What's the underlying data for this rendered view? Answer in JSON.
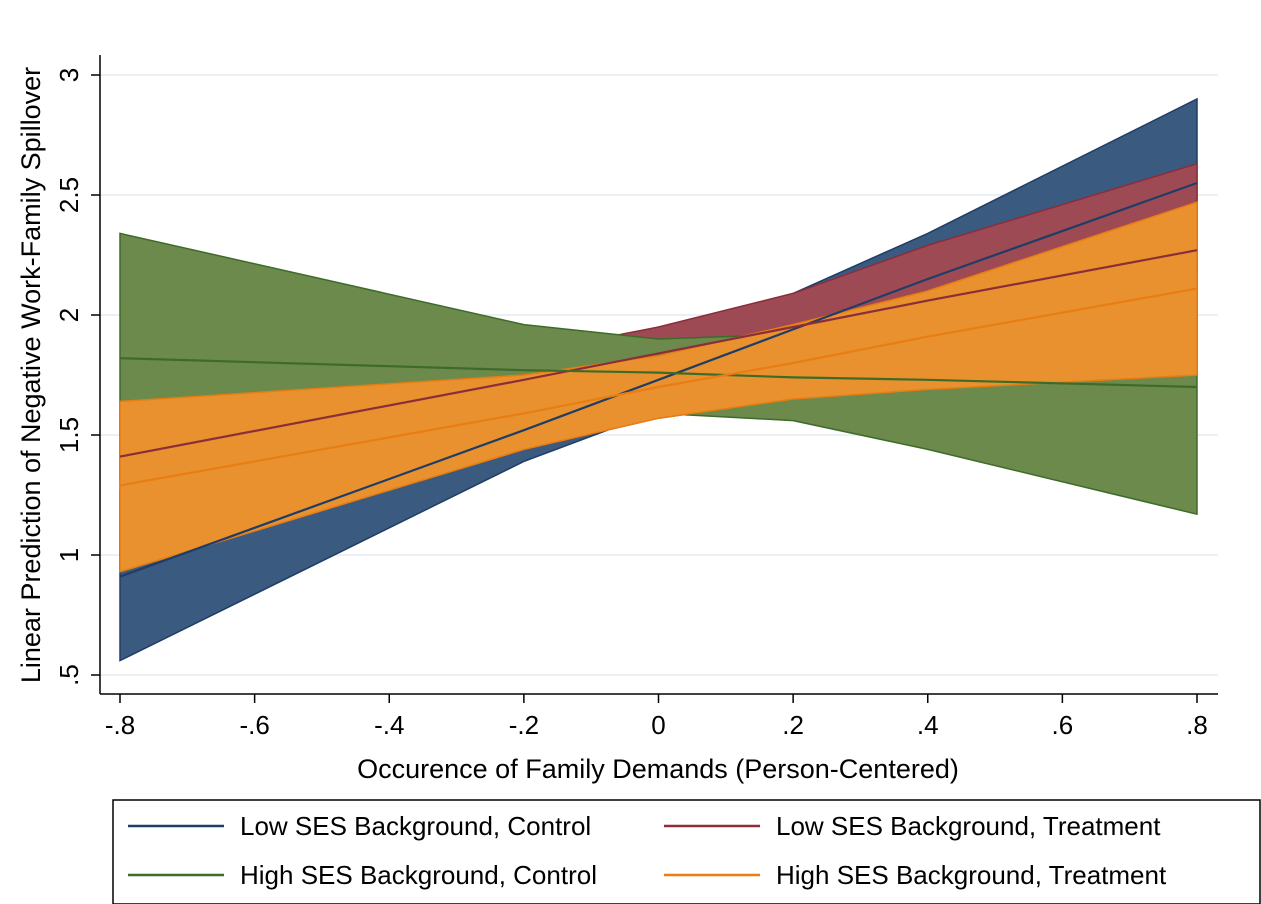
{
  "chart_data": {
    "type": "line",
    "title": "",
    "xlabel": "Occurence of Family Demands (Person-Centered)",
    "ylabel": "Linear Prediction of Negative Work-Family Spillover",
    "xlim": [
      -0.8,
      0.8
    ],
    "ylim": [
      0.5,
      3
    ],
    "xticks": [
      -0.8,
      -0.6,
      -0.4,
      -0.2,
      0,
      0.2,
      0.4,
      0.6,
      0.8
    ],
    "xtick_labels": [
      "-.8",
      "-.6",
      "-.4",
      "-.2",
      "0",
      ".2",
      ".4",
      ".6",
      ".8"
    ],
    "yticks": [
      0.5,
      1,
      1.5,
      2,
      2.5,
      3
    ],
    "ytick_labels": [
      ".5",
      "1",
      "1.5",
      "2",
      "2.5",
      "3"
    ],
    "grid": true,
    "legend_position": "bottom",
    "series": [
      {
        "name": "Low SES Background, Control",
        "color": "#1f3d66",
        "band_color": "#3b5a7f",
        "x": [
          -0.8,
          -0.2,
          0,
          0.2,
          0.4,
          0.8
        ],
        "y": [
          0.91,
          1.52,
          1.73,
          1.94,
          2.15,
          2.55
        ],
        "ci_low": [
          0.56,
          1.39,
          1.6,
          1.78,
          1.95,
          2.19
        ],
        "ci_high": [
          1.27,
          1.65,
          1.87,
          2.09,
          2.34,
          2.9
        ]
      },
      {
        "name": "Low SES Background, Treatment",
        "color": "#8b2e3a",
        "band_color": "#9e4a55",
        "x": [
          -0.8,
          -0.2,
          0,
          0.2,
          0.4,
          0.8
        ],
        "y": [
          1.41,
          1.73,
          1.84,
          1.95,
          2.06,
          2.27
        ],
        "ci_low": [
          0.94,
          1.44,
          1.57,
          1.65,
          1.69,
          1.75
        ],
        "ci_high": [
          1.64,
          1.84,
          1.95,
          2.09,
          2.29,
          2.63
        ]
      },
      {
        "name": "High SES Background, Control",
        "color": "#3e6b2a",
        "band_color": "#6b8a4b",
        "x": [
          -0.8,
          -0.2,
          0,
          0.2,
          0.4,
          0.8
        ],
        "y": [
          1.82,
          1.77,
          1.76,
          1.74,
          1.73,
          1.7
        ],
        "ci_low": [
          1.31,
          1.58,
          1.59,
          1.56,
          1.44,
          1.17
        ],
        "ci_high": [
          2.34,
          1.96,
          1.9,
          1.92,
          1.99,
          2.21
        ]
      },
      {
        "name": "High SES Background, Treatment",
        "color": "#e87d12",
        "band_color": "#e8912e",
        "x": [
          -0.8,
          -0.2,
          0,
          0.2,
          0.4,
          0.8
        ],
        "y": [
          1.29,
          1.59,
          1.7,
          1.8,
          1.91,
          2.11
        ],
        "ci_low": [
          0.93,
          1.44,
          1.57,
          1.65,
          1.69,
          1.75
        ],
        "ci_high": [
          1.64,
          1.75,
          1.83,
          1.96,
          2.1,
          2.47
        ]
      }
    ]
  }
}
